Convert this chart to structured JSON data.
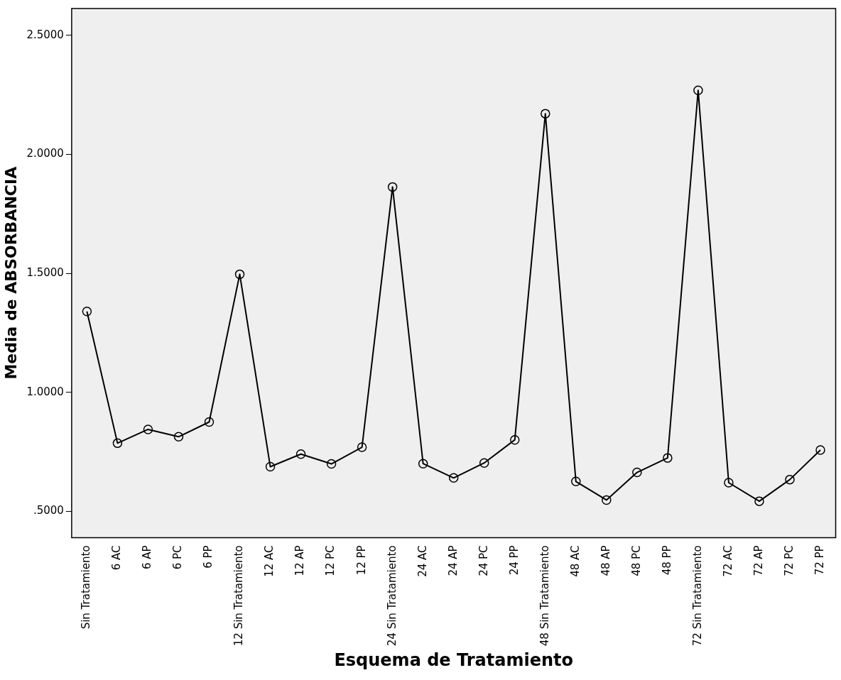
{
  "chart_data": {
    "type": "line",
    "xlabel": "Esquema de Tratamiento",
    "ylabel": "Media de ABSORBANCIA",
    "categories": [
      "Sin Tratamiento",
      "6 AC",
      "6 AP",
      "6 PC",
      "6 PP",
      "12 Sin Tratamiento",
      "12 AC",
      "12 AP",
      "12 PC",
      "12 PP",
      "24 Sin Tratamiento",
      "24 AC",
      "24 AP",
      "24 PC",
      "24 PP",
      "48 Sin Tratamiento",
      "48 AC",
      "48 AP",
      "48 PC",
      "48 PP",
      "72 Sin Tratamiento",
      "72 AC",
      "72 AP",
      "72 PC",
      "72 PP"
    ],
    "series": [
      {
        "color": "#000000",
        "values": [
          1.34,
          0.786,
          0.844,
          0.813,
          0.875,
          1.496,
          0.687,
          0.74,
          0.699,
          0.769,
          1.863,
          0.7,
          0.64,
          0.703,
          0.8,
          2.171,
          0.625,
          0.547,
          0.663,
          0.724,
          2.269,
          0.62,
          0.542,
          0.633,
          0.757
        ]
      }
    ],
    "ylim": [
      0.389,
      2.613
    ],
    "yticks": [
      {
        "value": 0.5,
        "label": ".5000"
      },
      {
        "value": 1,
        "label": "1.0000"
      },
      {
        "value": 1.5,
        "label": "1.5000"
      },
      {
        "value": 2,
        "label": "2.0000"
      },
      {
        "value": 2.5,
        "label": "2.5000"
      }
    ],
    "grid": false,
    "legend": false,
    "marker": "circle",
    "line_style": "solid"
  }
}
